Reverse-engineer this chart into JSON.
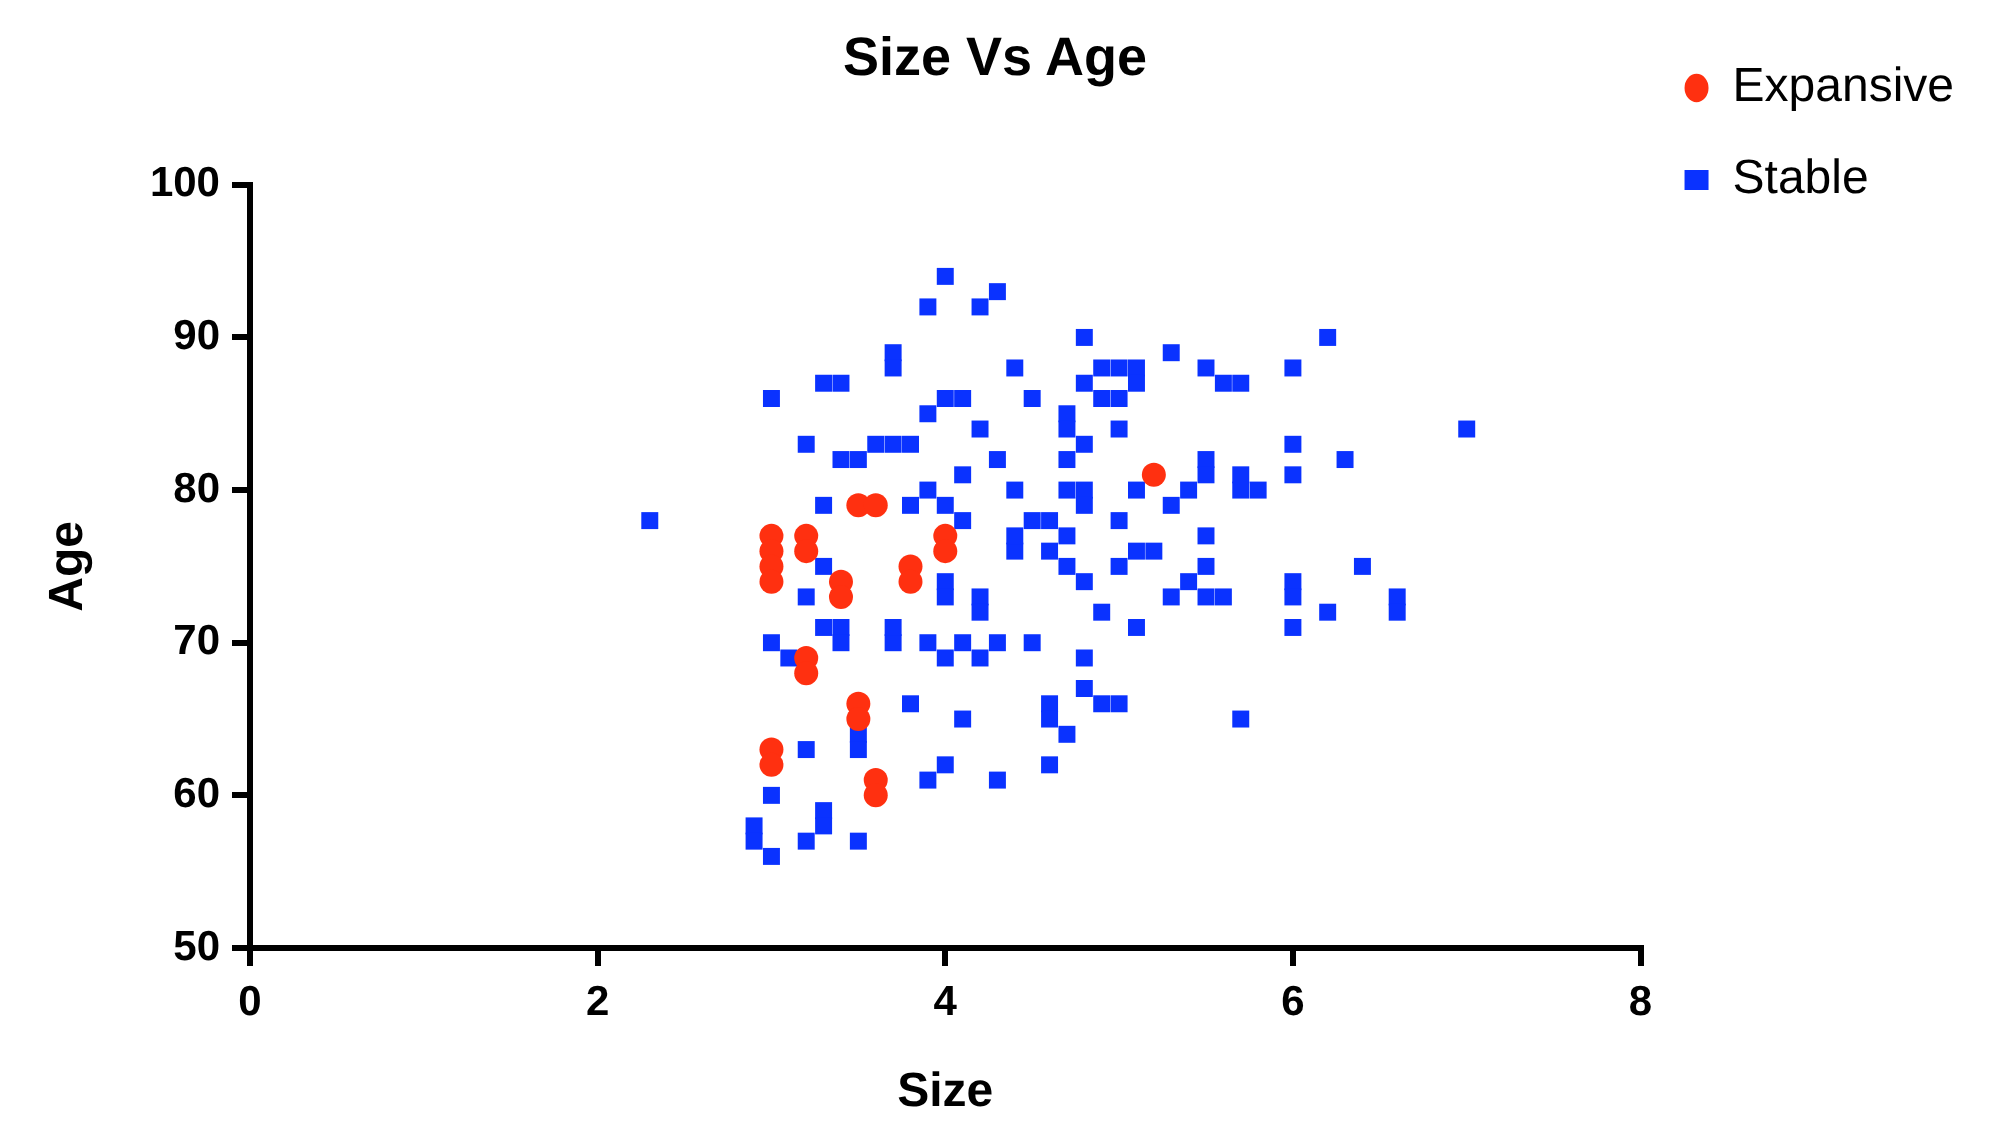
{
  "chart_data": {
    "type": "scatter",
    "title": "Size Vs Age",
    "xlabel": "Size",
    "ylabel": "Age",
    "xlim": [
      0,
      8
    ],
    "xticks": [
      0,
      2,
      4,
      6,
      8
    ],
    "ylim": [
      50,
      100
    ],
    "yticks": [
      50,
      60,
      70,
      80,
      90,
      100
    ],
    "grid": false,
    "legend": "top right",
    "series": [
      {
        "name": "Expansive",
        "color": "#ff3010",
        "marker": "circle",
        "x": [
          3.0,
          3.0,
          3.0,
          3.0,
          3.0,
          3.0,
          3.2,
          3.2,
          3.2,
          3.2,
          3.4,
          3.4,
          3.5,
          3.5,
          3.5,
          3.6,
          3.6,
          3.6,
          3.8,
          3.8,
          4.0,
          4.0,
          5.2
        ],
        "values": [
          77,
          76,
          75,
          74,
          63,
          62,
          77,
          76,
          69,
          68,
          74,
          73,
          79,
          66,
          65,
          79,
          61,
          60,
          75,
          74,
          77,
          76,
          81
        ]
      },
      {
        "name": "Stable",
        "color": "#0a32ff",
        "marker": "square",
        "x": [
          2.3,
          2.9,
          2.9,
          3.0,
          3.0,
          3.0,
          3.0,
          3.1,
          3.2,
          3.2,
          3.2,
          3.2,
          3.3,
          3.3,
          3.3,
          3.3,
          3.3,
          3.3,
          3.4,
          3.4,
          3.4,
          3.4,
          3.5,
          3.5,
          3.5,
          3.5,
          3.6,
          3.7,
          3.7,
          3.7,
          3.7,
          3.7,
          3.8,
          3.8,
          3.8,
          3.9,
          3.9,
          3.9,
          3.9,
          3.9,
          4.0,
          4.0,
          4.0,
          4.0,
          4.0,
          4.0,
          4.0,
          4.1,
          4.1,
          4.1,
          4.1,
          4.1,
          4.2,
          4.2,
          4.2,
          4.2,
          4.2,
          4.3,
          4.3,
          4.3,
          4.3,
          4.4,
          4.4,
          4.4,
          4.4,
          4.5,
          4.5,
          4.5,
          4.6,
          4.6,
          4.6,
          4.6,
          4.6,
          4.7,
          4.7,
          4.7,
          4.7,
          4.7,
          4.7,
          4.7,
          4.8,
          4.8,
          4.8,
          4.8,
          4.8,
          4.8,
          4.8,
          4.8,
          4.9,
          4.9,
          4.9,
          4.9,
          5.0,
          5.0,
          5.0,
          5.0,
          5.0,
          5.0,
          5.1,
          5.1,
          5.1,
          5.1,
          5.1,
          5.2,
          5.3,
          5.3,
          5.3,
          5.4,
          5.4,
          5.5,
          5.5,
          5.5,
          5.5,
          5.5,
          5.5,
          5.6,
          5.6,
          5.7,
          5.7,
          5.7,
          5.7,
          5.8,
          6.0,
          6.0,
          6.0,
          6.0,
          6.0,
          6.0,
          6.2,
          6.2,
          6.3,
          6.4,
          6.6,
          6.6,
          7.0
        ],
        "values": [
          78,
          58,
          57,
          86,
          70,
          60,
          56,
          69,
          83,
          73,
          63,
          57,
          87,
          79,
          75,
          71,
          59,
          58,
          87,
          82,
          71,
          70,
          82,
          64,
          63,
          57,
          83,
          89,
          88,
          83,
          70,
          71,
          79,
          66,
          83,
          92,
          85,
          80,
          70,
          61,
          94,
          86,
          74,
          73,
          69,
          62,
          79,
          86,
          78,
          70,
          65,
          81,
          92,
          84,
          73,
          72,
          69,
          93,
          82,
          70,
          61,
          88,
          80,
          76,
          77,
          70,
          78,
          86,
          78,
          76,
          66,
          62,
          65,
          85,
          84,
          80,
          77,
          64,
          75,
          82,
          90,
          87,
          80,
          74,
          69,
          67,
          79,
          83,
          88,
          86,
          72,
          66,
          88,
          84,
          86,
          75,
          66,
          78,
          88,
          87,
          80,
          71,
          76,
          76,
          89,
          79,
          73,
          80,
          74,
          88,
          82,
          77,
          75,
          73,
          81,
          87,
          73,
          87,
          65,
          80,
          81,
          80,
          88,
          83,
          81,
          74,
          73,
          71,
          72,
          90,
          82,
          75,
          73,
          72,
          84
        ]
      }
    ]
  }
}
